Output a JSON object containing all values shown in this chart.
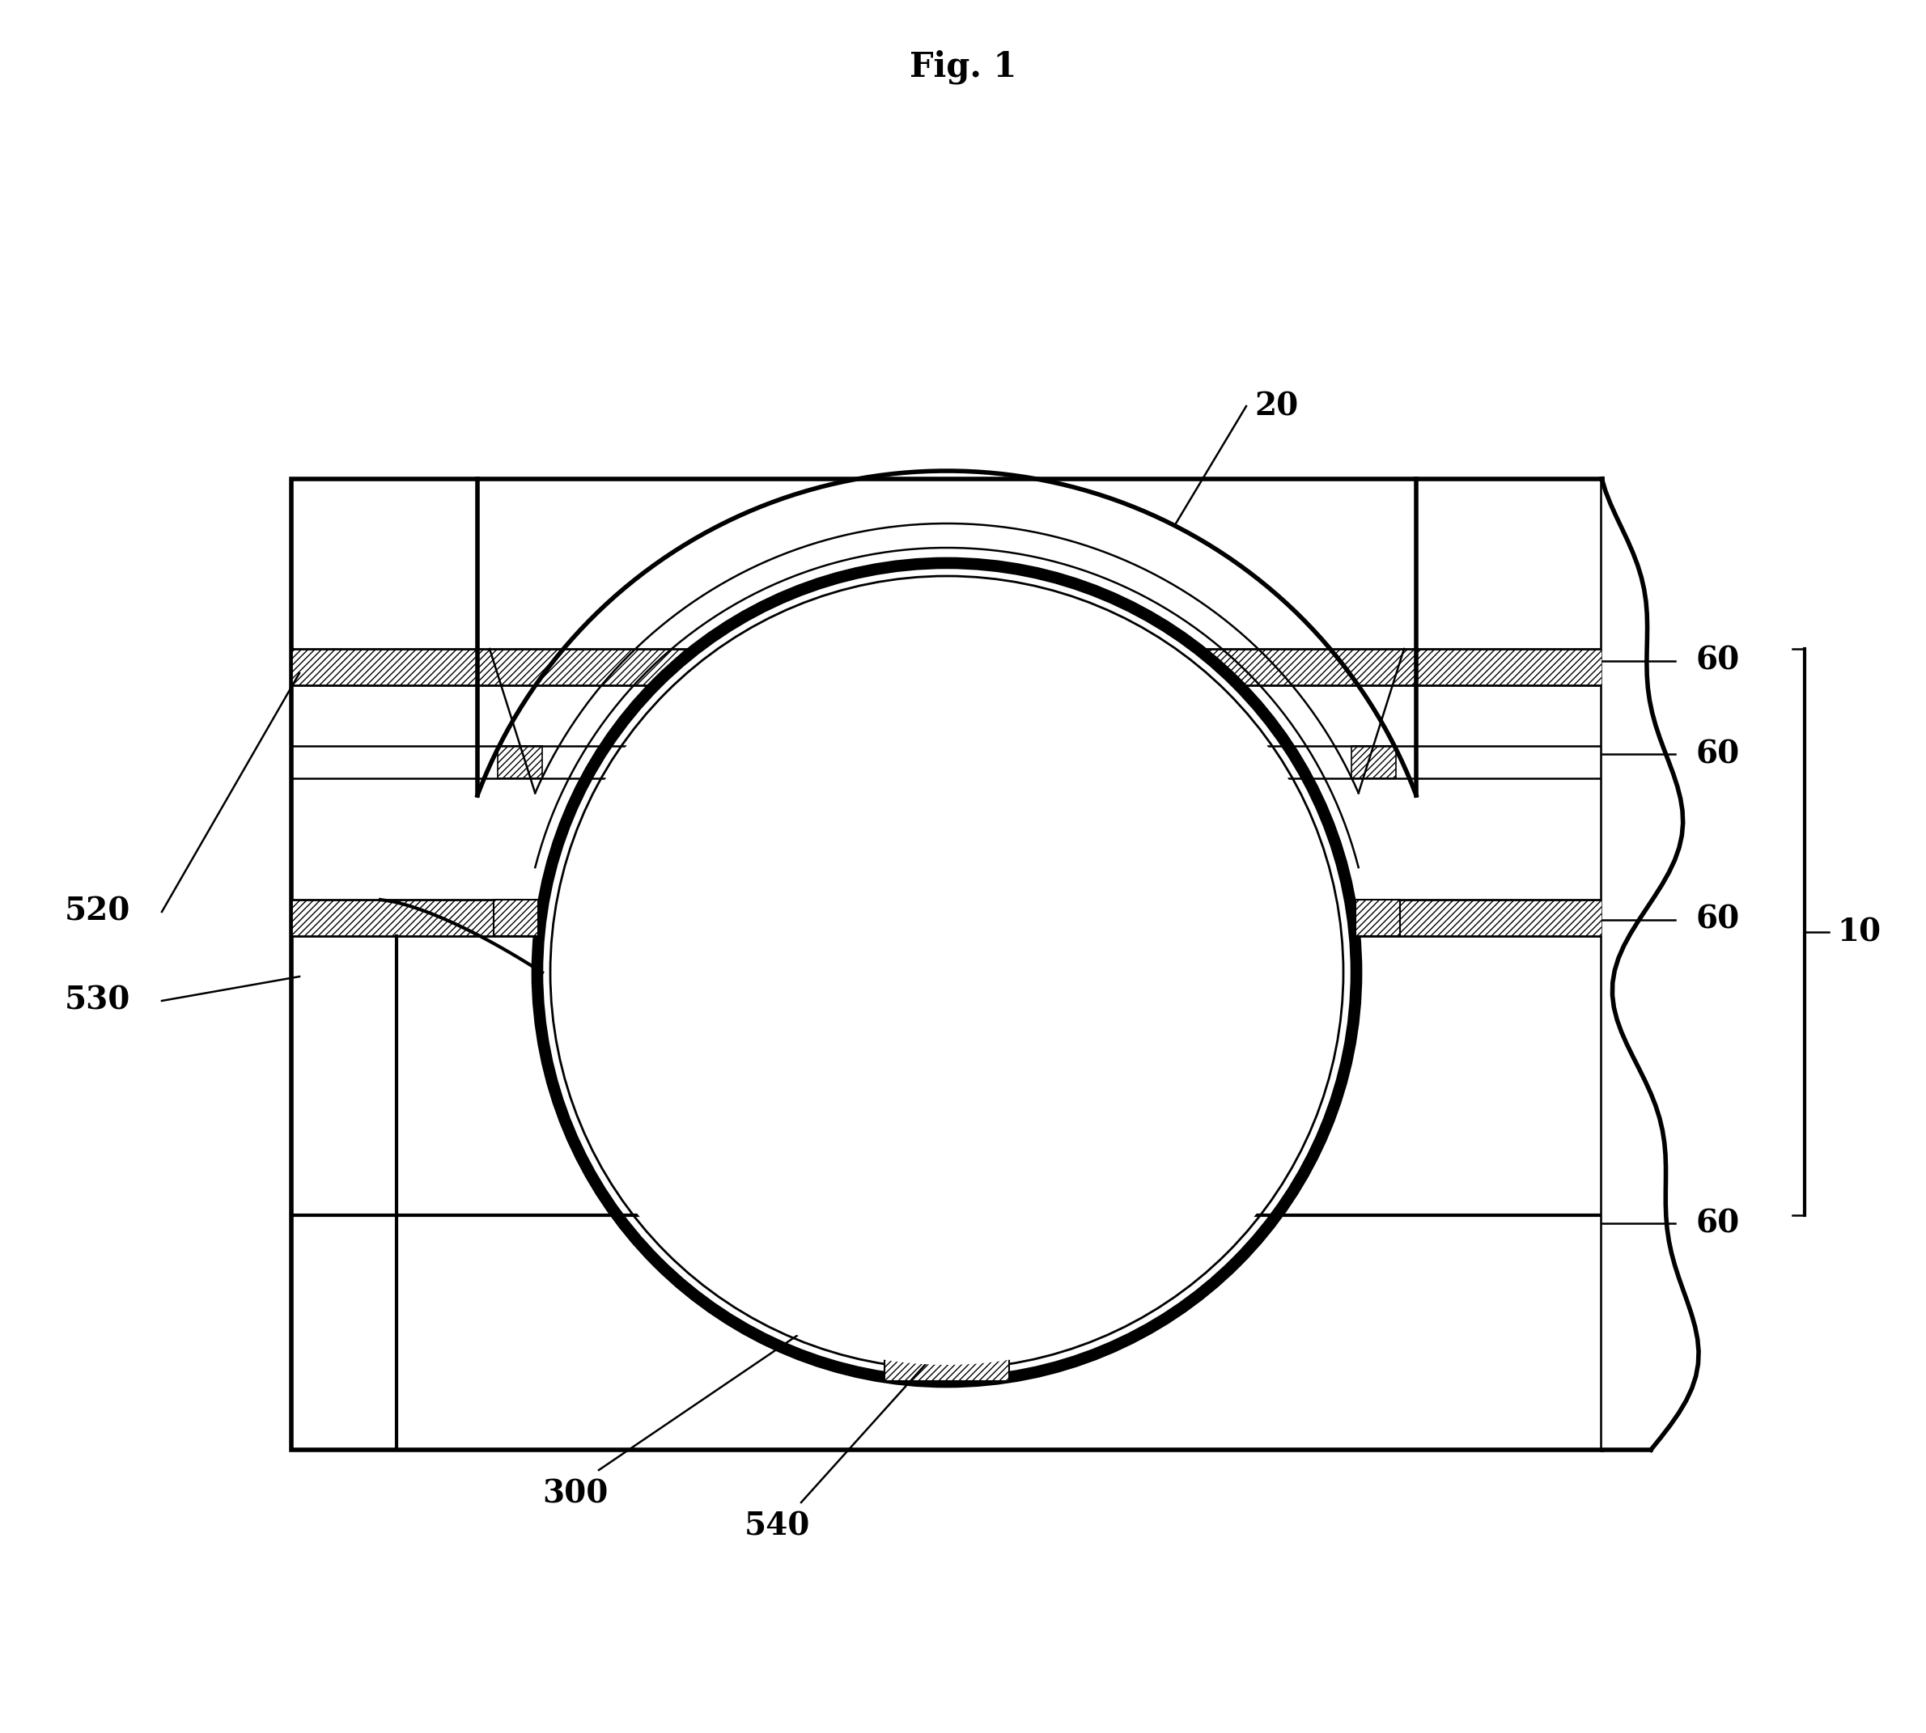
{
  "title": "Fig. 1",
  "title_fontsize": 30,
  "title_fontweight": "bold",
  "bg_color": "#ffffff",
  "line_color": "#000000",
  "figure_width": 23.8,
  "figure_height": 21.42
}
